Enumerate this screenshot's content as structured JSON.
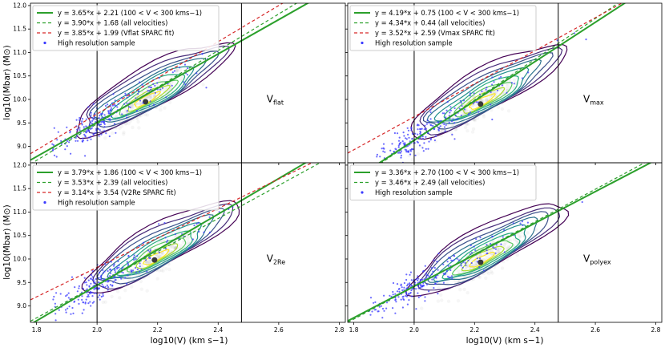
{
  "figure": {
    "xlabel": "log10(V) (km s−1)",
    "ylabel": "log10(Mbar) (M⊙)"
  },
  "chart_data": [
    {
      "type": "scatter",
      "panel": "top-left",
      "label": "Vflat",
      "xlim": [
        1.78,
        2.82
      ],
      "ylim": [
        8.65,
        12.05
      ],
      "xticks": [
        1.8,
        2.0,
        2.2,
        2.4,
        2.6,
        2.8
      ],
      "yticks": [
        9.0,
        9.5,
        10.0,
        10.5,
        11.0,
        11.5,
        12.0
      ],
      "vlines": [
        2.0,
        2.477
      ],
      "series": [
        {
          "name": "y = 3.65*x + 2.21 (100 < V < 300 kms−1)",
          "slope": 3.65,
          "intercept": 2.21,
          "style": "solid",
          "color": "#2ca02c"
        },
        {
          "name": "y = 3.90*x + 1.68 (all velocities)",
          "slope": 3.9,
          "intercept": 1.68,
          "style": "dashed",
          "color": "#2ca02c"
        },
        {
          "name": "y = 3.85*x + 1.99 (Vflat SPARC fit)",
          "slope": 3.85,
          "intercept": 1.99,
          "style": "dashed",
          "color": "#d62728"
        },
        {
          "name": "High resolution sample",
          "style": "scatter",
          "color": "#3b3bff"
        }
      ],
      "density_peak": {
        "x": 2.16,
        "y": 9.95
      },
      "legend_loc": "top-left"
    },
    {
      "type": "scatter",
      "panel": "top-right",
      "label": "Vmax",
      "xlim": [
        1.78,
        2.82
      ],
      "ylim": [
        8.65,
        12.05
      ],
      "xticks": [
        1.8,
        2.0,
        2.2,
        2.4,
        2.6,
        2.8
      ],
      "yticks": [
        9.0,
        9.5,
        10.0,
        10.5,
        11.0,
        11.5,
        12.0
      ],
      "vlines": [
        2.0,
        2.477
      ],
      "series": [
        {
          "name": "y = 4.19*x + 0.75 (100 < V < 300 kms−1)",
          "slope": 4.19,
          "intercept": 0.75,
          "style": "solid",
          "color": "#2ca02c"
        },
        {
          "name": "y = 4.34*x + 0.44 (all velocities)",
          "slope": 4.34,
          "intercept": 0.44,
          "style": "dashed",
          "color": "#2ca02c"
        },
        {
          "name": "y = 3.52*x + 2.59 (Vmax SPARC fit)",
          "slope": 3.52,
          "intercept": 2.59,
          "style": "dashed",
          "color": "#d62728"
        },
        {
          "name": "High resolution sample",
          "style": "scatter",
          "color": "#3b3bff"
        }
      ],
      "density_peak": {
        "x": 2.22,
        "y": 9.9
      },
      "legend_loc": "top-left"
    },
    {
      "type": "scatter",
      "panel": "bottom-left",
      "label": "V2Re",
      "xlim": [
        1.78,
        2.82
      ],
      "ylim": [
        8.65,
        12.05
      ],
      "xticks": [
        1.8,
        2.0,
        2.2,
        2.4,
        2.6,
        2.8
      ],
      "yticks": [
        9.0,
        9.5,
        10.0,
        10.5,
        11.0,
        11.5,
        12.0
      ],
      "vlines": [
        2.0,
        2.477
      ],
      "series": [
        {
          "name": "y = 3.79*x + 1.86 (100 < V < 300 kms−1)",
          "slope": 3.79,
          "intercept": 1.86,
          "style": "solid",
          "color": "#2ca02c"
        },
        {
          "name": "y = 3.53*x + 2.39 (all velocities)",
          "slope": 3.53,
          "intercept": 2.39,
          "style": "dashed",
          "color": "#2ca02c"
        },
        {
          "name": "y = 3.14*x + 3.54 (V2Re SPARC fit)",
          "slope": 3.14,
          "intercept": 3.54,
          "style": "dashed",
          "color": "#d62728"
        },
        {
          "name": "High resolution sample",
          "style": "scatter",
          "color": "#3b3bff"
        }
      ],
      "density_peak": {
        "x": 2.19,
        "y": 9.98
      },
      "legend_loc": "top-left"
    },
    {
      "type": "scatter",
      "panel": "bottom-right",
      "label": "Vpolyex",
      "xlim": [
        1.78,
        2.82
      ],
      "ylim": [
        8.65,
        12.05
      ],
      "xticks": [
        1.8,
        2.0,
        2.2,
        2.4,
        2.6,
        2.8
      ],
      "yticks": [
        9.0,
        9.5,
        10.0,
        10.5,
        11.0,
        11.5,
        12.0
      ],
      "vlines": [
        2.0,
        2.477
      ],
      "series": [
        {
          "name": "y = 3.36*x + 2.70 (100 < V < 300 kms−1)",
          "slope": 3.36,
          "intercept": 2.7,
          "style": "solid",
          "color": "#2ca02c"
        },
        {
          "name": "y = 3.46*x + 2.49 (all velocities)",
          "slope": 3.46,
          "intercept": 2.49,
          "style": "dashed",
          "color": "#2ca02c"
        },
        {
          "name": "High resolution sample",
          "style": "scatter",
          "color": "#3b3bff"
        }
      ],
      "density_peak": {
        "x": 2.22,
        "y": 9.93
      },
      "legend_loc": "top-left"
    }
  ]
}
